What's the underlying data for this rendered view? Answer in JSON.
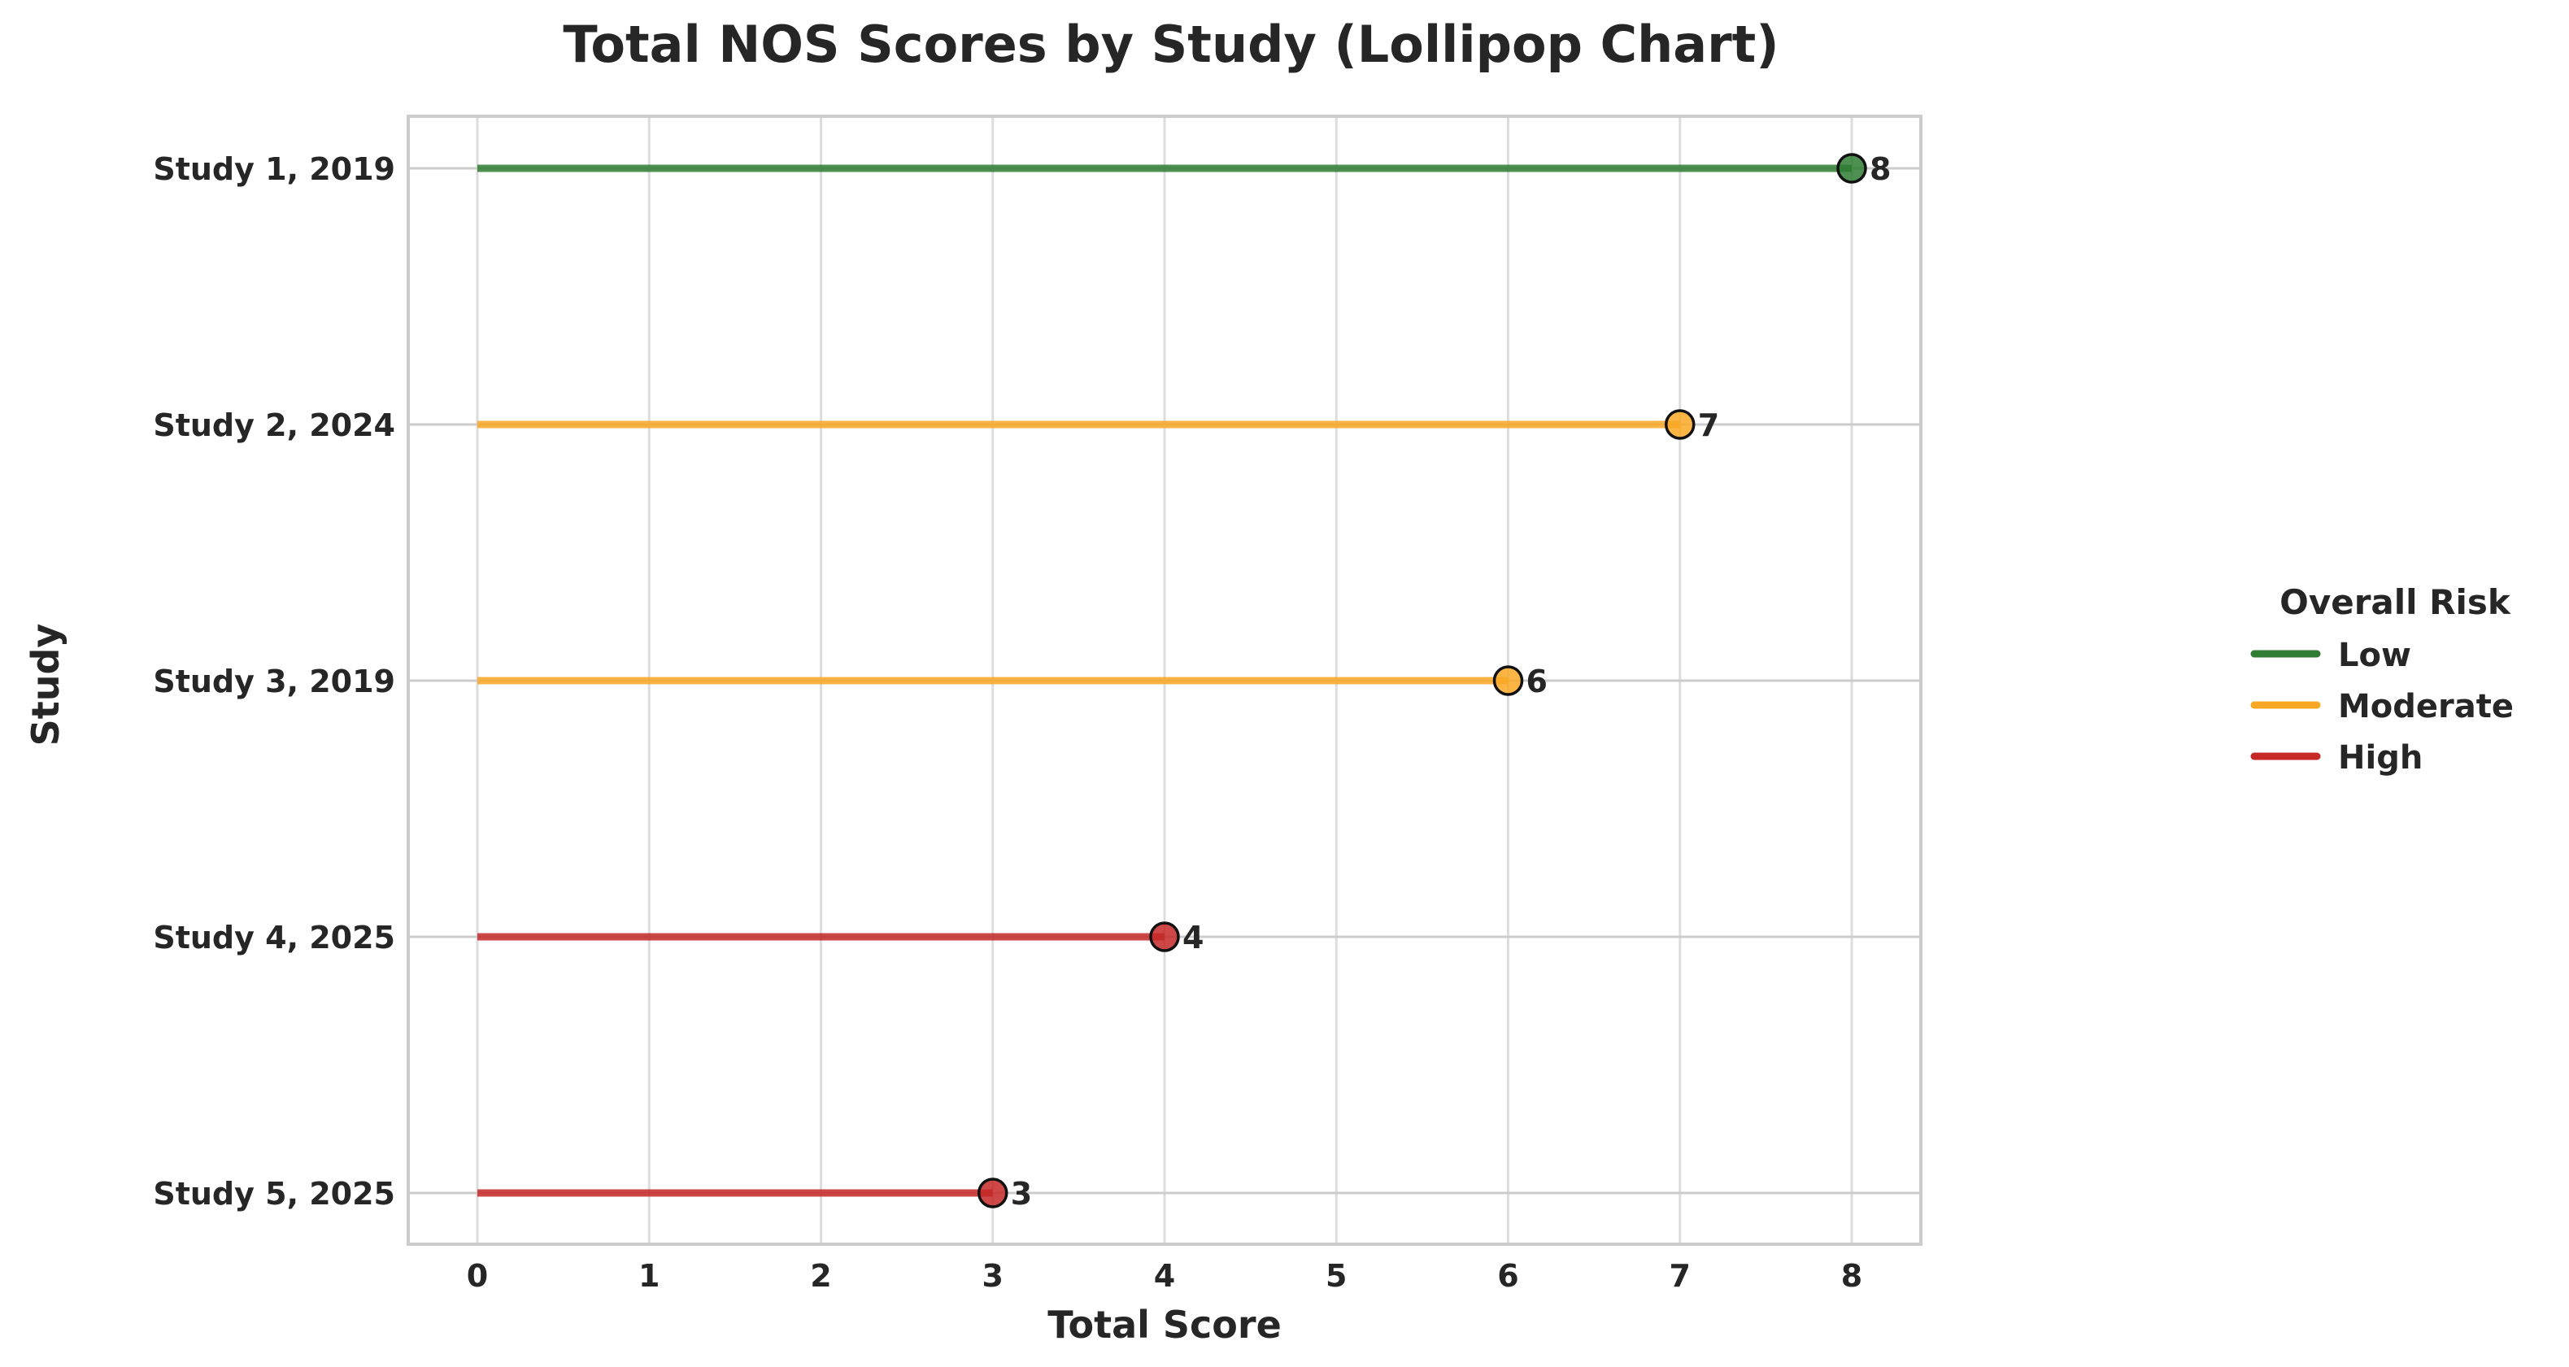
{
  "chart_data": {
    "type": "lollipop",
    "title": "Total NOS Scores by Study (Lollipop Chart)",
    "xlabel": "Total Score",
    "ylabel": "Study",
    "xlim": [
      -0.4,
      8.4
    ],
    "xticks": [
      "0",
      "1",
      "2",
      "3",
      "4",
      "5",
      "6",
      "7",
      "8"
    ],
    "grid": true,
    "legend_position": "right",
    "categories": [
      "Study 1, 2019",
      "Study 2, 2024",
      "Study 3, 2019",
      "Study 4, 2025",
      "Study 5, 2025"
    ],
    "values": [
      8,
      7,
      6,
      4,
      3
    ],
    "risk": [
      "Low",
      "Moderate",
      "Moderate",
      "High",
      "High"
    ],
    "data_labels": [
      "8",
      "7",
      "6",
      "4",
      "3"
    ],
    "legend": {
      "title": "Overall Risk",
      "entries": [
        {
          "label": "Low",
          "color": "#2e7d32"
        },
        {
          "label": "Moderate",
          "color": "#f9a825"
        },
        {
          "label": "High",
          "color": "#c62828"
        }
      ]
    }
  }
}
